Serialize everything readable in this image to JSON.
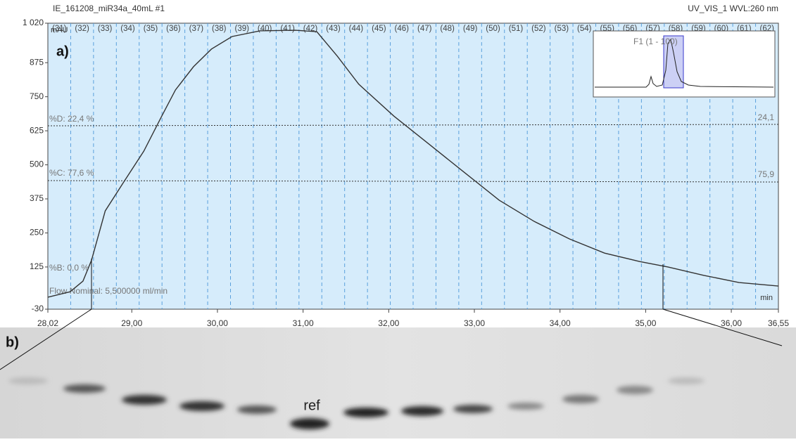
{
  "header": {
    "title": "IE_161208_miR34a_40mL #1",
    "detector": "UV_VIS_1 WVL:260 nm"
  },
  "panel_labels": [
    "a)",
    "b)"
  ],
  "chart_data": {
    "type": "line",
    "color": "#333333",
    "y_unit": "mAU",
    "x_unit": "min",
    "x": [
      28.02,
      28.28,
      28.43,
      28.53,
      28.69,
      28.9,
      29.14,
      29.35,
      29.51,
      29.72,
      29.93,
      30.17,
      30.5,
      30.91,
      31.16,
      31.4,
      31.65,
      32.06,
      32.47,
      32.88,
      33.29,
      33.7,
      34.11,
      34.52,
      34.93,
      35.26,
      35.68,
      36.09,
      36.55
    ],
    "values": [
      14,
      34,
      73,
      150,
      331,
      434,
      550,
      679,
      775,
      860,
      925,
      971,
      992,
      994,
      989,
      899,
      796,
      679,
      576,
      473,
      370,
      292,
      228,
      176,
      145,
      125,
      94,
      68,
      55
    ],
    "xlim": [
      28.02,
      36.55
    ],
    "xticks": [
      {
        "value": 28.02,
        "label": "28,02"
      },
      {
        "value": 29,
        "label": "29,00"
      },
      {
        "value": 30,
        "label": "30,00"
      },
      {
        "value": 31,
        "label": "31,00"
      },
      {
        "value": 32,
        "label": "32,00"
      },
      {
        "value": 33,
        "label": "33,00"
      },
      {
        "value": 34,
        "label": "34,00"
      },
      {
        "value": 35,
        "label": "35,00"
      },
      {
        "value": 36,
        "label": "36,00"
      },
      {
        "value": 36.55,
        "label": "36,55"
      }
    ],
    "ylim": [
      -30,
      1020
    ],
    "yticks": [
      -30,
      125,
      250,
      375,
      500,
      625,
      750,
      875,
      {
        "value": 1020,
        "label": "1 020"
      }
    ],
    "fractions": [
      "(31)",
      "(32)",
      "(33)",
      "(34)",
      "(35)",
      "(36)",
      "(37)",
      "(38)",
      "(39)",
      "(40)",
      "(41)",
      "(42)",
      "(43)",
      "(44)",
      "(45)",
      "(46)",
      "(47)",
      "(48)",
      "(49)",
      "(50)",
      "(51)",
      "(52)",
      "(53)",
      "(54)",
      "(55)",
      "(56)",
      "(57)",
      "(58)",
      "(59)",
      "(60)",
      "(61)",
      "(62)"
    ],
    "annotations": [
      "%D: 22,4 %",
      "24,1",
      "%C: 77,6 %",
      "75,9",
      "%B: 0,0 %",
      "Flow Nominal: 5,500000 ml/min"
    ],
    "inset_label": "F1 (1 - 100)"
  },
  "gel": {
    "label": "ref"
  }
}
